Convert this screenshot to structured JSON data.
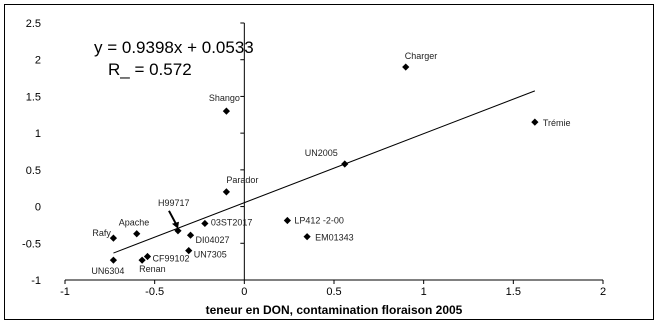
{
  "chart_data": {
    "type": "scatter",
    "title": "",
    "xlabel": "teneur en DON, contamination floraison 2005",
    "ylabel": "",
    "xlim": [
      -1,
      2
    ],
    "ylim": [
      -1,
      2.5
    ],
    "x_ticks": [
      "-1",
      "-0.5",
      "0",
      "0.5",
      "1",
      "1.5",
      "2"
    ],
    "y_ticks": [
      "-1",
      "-0.5",
      "0",
      "0.5",
      "1",
      "1.5",
      "2",
      "2.5"
    ],
    "grid": false,
    "series": [
      {
        "points": [
          {
            "label": "Charger",
            "x": 0.9,
            "y": 1.9
          },
          {
            "label": "Trémie",
            "x": 1.62,
            "y": 1.15
          },
          {
            "label": "Shango",
            "x": -0.1,
            "y": 1.3
          },
          {
            "label": "UN2005",
            "x": 0.56,
            "y": 0.58
          },
          {
            "label": "Parador",
            "x": -0.1,
            "y": 0.2
          },
          {
            "label": "H99717",
            "x": -0.37,
            "y": -0.33
          },
          {
            "label": "03ST2017",
            "x": -0.22,
            "y": -0.23
          },
          {
            "label": "Apache",
            "x": -0.6,
            "y": -0.37
          },
          {
            "label": "Rafy",
            "x": -0.73,
            "y": -0.43
          },
          {
            "label": "DI04027",
            "x": -0.3,
            "y": -0.39
          },
          {
            "label": "LP412 -2-00",
            "x": 0.24,
            "y": -0.19
          },
          {
            "label": "EM01343",
            "x": 0.35,
            "y": -0.41
          },
          {
            "label": "UN7305",
            "x": -0.31,
            "y": -0.6
          },
          {
            "label": "CF99102",
            "x": -0.54,
            "y": -0.68
          },
          {
            "label": "Renan",
            "x": -0.57,
            "y": -0.73
          },
          {
            "label": "UN6304",
            "x": -0.73,
            "y": -0.73
          }
        ]
      }
    ],
    "trendline": {
      "slope": 0.9398,
      "intercept": 0.0533,
      "x_range": [
        -0.73,
        1.62
      ],
      "equation_text": "y = 0.9398x + 0.0533",
      "r2_text": "R_ = 0.572"
    }
  }
}
